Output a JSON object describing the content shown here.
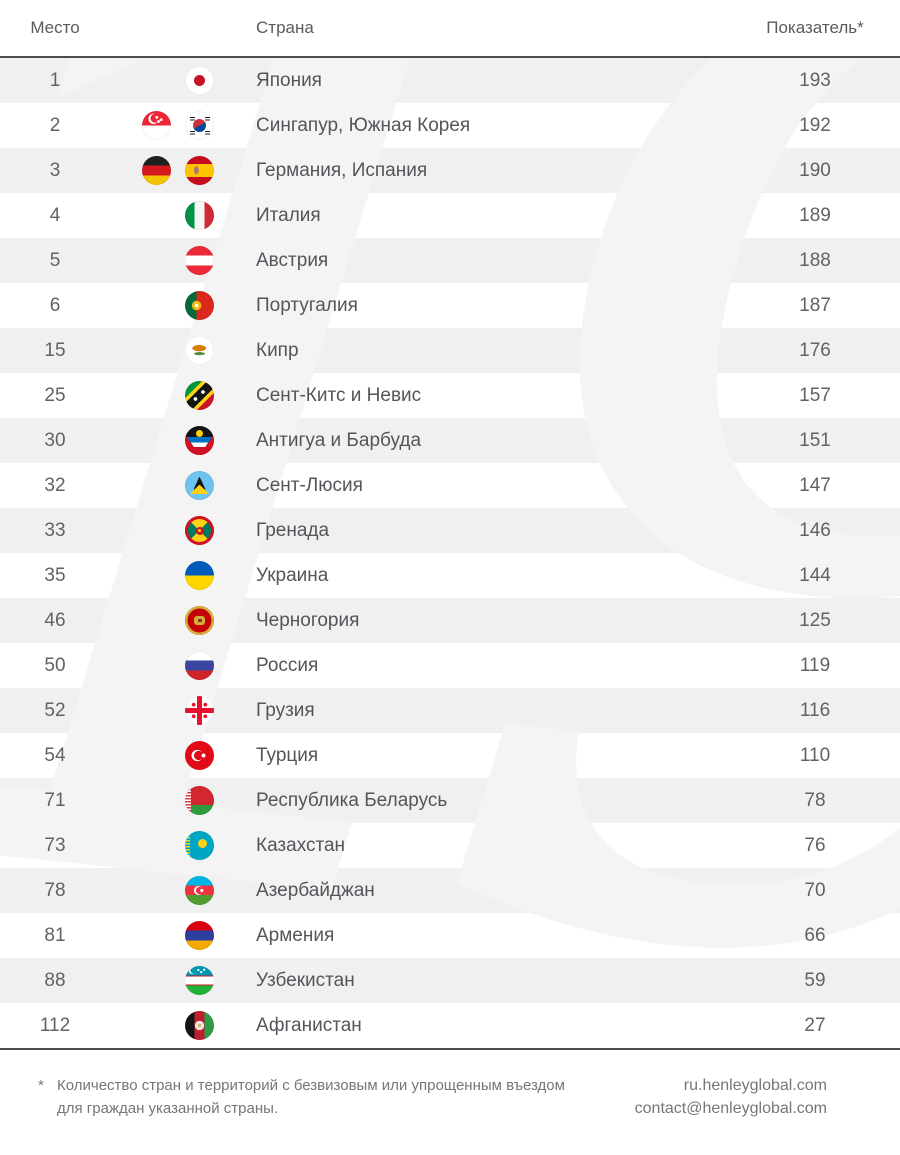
{
  "header": {
    "rank": "Место",
    "country": "Страна",
    "score": "Показатель*"
  },
  "rows": [
    {
      "rank": "1",
      "country": "Япония",
      "score": "193",
      "flags": [
        {
          "id": "jp",
          "name": "japan"
        }
      ]
    },
    {
      "rank": "2",
      "country": "Сингапур, Южная Корея",
      "score": "192",
      "flags": [
        {
          "id": "sg",
          "name": "singapore"
        },
        {
          "id": "kr",
          "name": "south-korea"
        }
      ]
    },
    {
      "rank": "3",
      "country": "Германия, Испания",
      "score": "190",
      "flags": [
        {
          "id": "de",
          "name": "germany"
        },
        {
          "id": "es",
          "name": "spain"
        }
      ]
    },
    {
      "rank": "4",
      "country": "Италия",
      "score": "189",
      "flags": [
        {
          "id": "it",
          "name": "italy"
        }
      ]
    },
    {
      "rank": "5",
      "country": "Австрия",
      "score": "188",
      "flags": [
        {
          "id": "at",
          "name": "austria"
        }
      ]
    },
    {
      "rank": "6",
      "country": "Португалия",
      "score": "187",
      "flags": [
        {
          "id": "pt",
          "name": "portugal"
        }
      ]
    },
    {
      "rank": "15",
      "country": "Кипр",
      "score": "176",
      "flags": [
        {
          "id": "cy",
          "name": "cyprus"
        }
      ]
    },
    {
      "rank": "25",
      "country": "Сент-Китс и Невис",
      "score": "157",
      "flags": [
        {
          "id": "kn",
          "name": "saint-kitts-and-nevis"
        }
      ]
    },
    {
      "rank": "30",
      "country": "Антигуа и Барбуда",
      "score": "151",
      "flags": [
        {
          "id": "ag",
          "name": "antigua-and-barbuda"
        }
      ]
    },
    {
      "rank": "32",
      "country": "Сент-Люсия",
      "score": "147",
      "flags": [
        {
          "id": "lc",
          "name": "saint-lucia"
        }
      ]
    },
    {
      "rank": "33",
      "country": "Гренада",
      "score": "146",
      "flags": [
        {
          "id": "gd",
          "name": "grenada"
        }
      ]
    },
    {
      "rank": "35",
      "country": "Украина",
      "score": "144",
      "flags": [
        {
          "id": "ua",
          "name": "ukraine"
        }
      ]
    },
    {
      "rank": "46",
      "country": "Черногория",
      "score": "125",
      "flags": [
        {
          "id": "me",
          "name": "montenegro"
        }
      ]
    },
    {
      "rank": "50",
      "country": "Россия",
      "score": "119",
      "flags": [
        {
          "id": "ru",
          "name": "russia"
        }
      ]
    },
    {
      "rank": "52",
      "country": "Грузия",
      "score": "116",
      "flags": [
        {
          "id": "ge",
          "name": "georgia"
        }
      ]
    },
    {
      "rank": "54",
      "country": "Турция",
      "score": "110",
      "flags": [
        {
          "id": "tr",
          "name": "turkey"
        }
      ]
    },
    {
      "rank": "71",
      "country": "Республика Беларусь",
      "score": "78",
      "flags": [
        {
          "id": "by",
          "name": "belarus"
        }
      ]
    },
    {
      "rank": "73",
      "country": "Казахстан",
      "score": "76",
      "flags": [
        {
          "id": "kz",
          "name": "kazakhstan"
        }
      ]
    },
    {
      "rank": "78",
      "country": "Азербайджан",
      "score": "70",
      "flags": [
        {
          "id": "az",
          "name": "azerbaijan"
        }
      ]
    },
    {
      "rank": "81",
      "country": "Армения",
      "score": "66",
      "flags": [
        {
          "id": "am",
          "name": "armenia"
        }
      ]
    },
    {
      "rank": "88",
      "country": "Узбекистан",
      "score": "59",
      "flags": [
        {
          "id": "uz",
          "name": "uzbekistan"
        }
      ]
    },
    {
      "rank": "112",
      "country": "Афганистан",
      "score": "27",
      "flags": [
        {
          "id": "af",
          "name": "afghanistan"
        }
      ]
    }
  ],
  "footnote": {
    "mark": "*",
    "line1": "Количество стран и территорий с безвизовым или упрощенным въездом",
    "line2": "для граждан указанной страны."
  },
  "contacts": {
    "site": "ru.henleyglobal.com",
    "email": "contact@henleyglobal.com"
  },
  "watermark": {
    "text": "19"
  },
  "colors": {
    "row_stripe": "#f0f0f1",
    "divider": "#4c4d4f",
    "row_text": "#55565b",
    "muted_text": "#75767a",
    "watermark": "#f4f4f5"
  }
}
